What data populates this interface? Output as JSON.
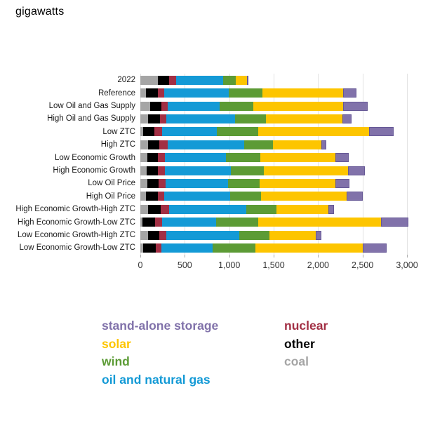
{
  "title": "gigawatts",
  "chart_data": {
    "type": "bar",
    "orientation": "horizontal",
    "stacked": true,
    "title": "gigawatts",
    "xlabel": "",
    "ylabel": "",
    "xlim": [
      0,
      3000
    ],
    "xticks": [
      0,
      500,
      1000,
      1500,
      2000,
      2500,
      3000
    ],
    "xtick_labels": [
      "0",
      "500",
      "1,000",
      "1,500",
      "2,000",
      "2,500",
      "3,000"
    ],
    "grid": "vertical",
    "unit": "gigawatts",
    "categories": [
      "2022",
      "Reference",
      "Low Oil and Gas Supply",
      "High Oil and Gas Supply",
      "Low ZTC",
      "High ZTC",
      "Low Economic Growth",
      "High Economic Growth",
      "Low Oil Price",
      "High Oil Price",
      "High Economic Growth-High ZTC",
      "High Economic Growth-Low ZTC",
      "Low Economic Growth-High ZTC",
      "Low Economic Growth-Low ZTC"
    ],
    "series": [
      {
        "name": "coal",
        "color": "#a5a5a5",
        "values": [
          200,
          65,
          110,
          85,
          30,
          85,
          80,
          70,
          80,
          65,
          90,
          25,
          85,
          35
        ]
      },
      {
        "name": "other",
        "color": "#000000",
        "values": [
          120,
          130,
          125,
          135,
          130,
          130,
          120,
          130,
          125,
          130,
          140,
          140,
          125,
          135
        ]
      },
      {
        "name": "nuclear",
        "color": "#a22f44",
        "values": [
          85,
          75,
          75,
          75,
          85,
          95,
          75,
          80,
          80,
          75,
          90,
          80,
          85,
          65
        ]
      },
      {
        "name": "oil and natural gas",
        "color": "#149ad6",
        "values": [
          525,
          725,
          585,
          770,
          615,
          855,
          690,
          735,
          705,
          740,
          870,
          605,
          815,
          580
        ]
      },
      {
        "name": "wind",
        "color": "#5c9b35",
        "values": [
          145,
          375,
          380,
          345,
          470,
          325,
          385,
          375,
          355,
          350,
          345,
          475,
          340,
          480
        ]
      },
      {
        "name": "solar",
        "color": "#fdc500",
        "values": [
          125,
          915,
          1010,
          860,
          1245,
          545,
          845,
          950,
          850,
          965,
          585,
          1380,
          525,
          1210
        ]
      },
      {
        "name": "stand-alone storage",
        "color": "#8172aa",
        "values": [
          10,
          145,
          270,
          105,
          275,
          60,
          150,
          185,
          160,
          180,
          60,
          310,
          60,
          265
        ]
      }
    ],
    "legend": {
      "position": "bottom",
      "columns": [
        [
          "stand-alone storage",
          "solar",
          "wind",
          "oil and natural gas"
        ],
        [
          "nuclear",
          "other",
          "coal"
        ]
      ]
    }
  }
}
